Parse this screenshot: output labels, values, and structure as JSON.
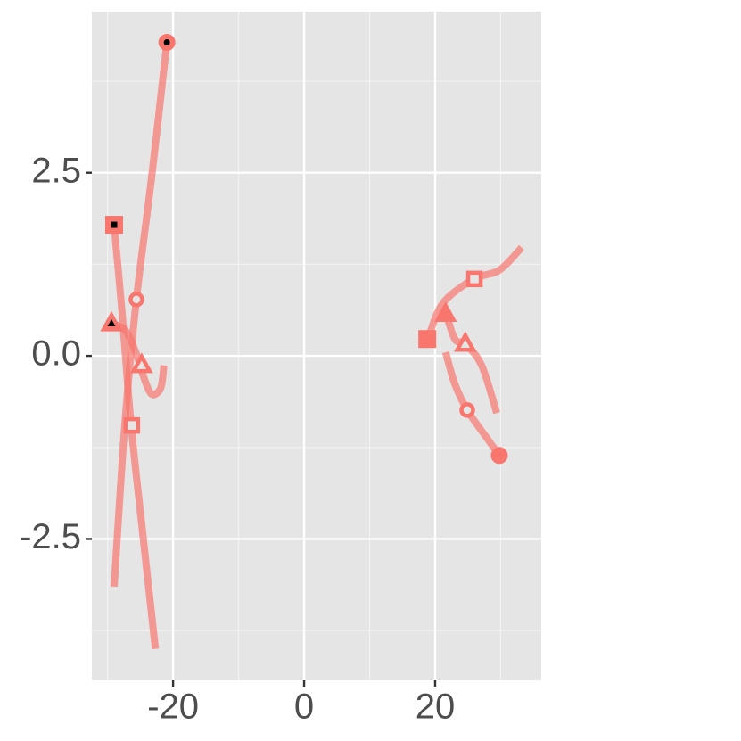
{
  "chart_data": {
    "type": "path",
    "xlim": [
      -32.4,
      36.2
    ],
    "ylim": [
      -4.43,
      4.7
    ],
    "xticks": [
      -20,
      0,
      20
    ],
    "yticks": [
      2.5,
      {
        "value": 0,
        "label": "0.0"
      },
      -2.5
    ],
    "x_minor_ticks": [
      -30,
      -10,
      10,
      30
    ],
    "y_minor_ticks": [
      3.75,
      1.25,
      -1.25,
      -3.75
    ],
    "grid": true,
    "color": "#f8766d",
    "series": [
      {
        "x": [
          -20.95,
          -23.3,
          -25.6,
          -27.3,
          -29.0
        ],
        "values": [
          4.28,
          2.42,
          0.77,
          -0.86,
          -3.15
        ]
      },
      {
        "x": [
          -29.0,
          -27.8,
          -26.4,
          -24.6,
          -22.7
        ],
        "values": [
          1.79,
          0.6,
          -0.95,
          -2.45,
          -4.0
        ]
      },
      {
        "x": [
          -29.5,
          -27.3,
          -25.7,
          -24.6,
          -23.3,
          -21.9,
          -21.4
        ],
        "values": [
          0.44,
          0.35,
          0.05,
          -0.26,
          -0.52,
          -0.44,
          -0.13
        ]
      },
      {
        "x": [
          18.9,
          21.2,
          25.9,
          29.8,
          33.2
        ],
        "values": [
          0.23,
          0.72,
          1.05,
          1.17,
          1.48
        ]
      },
      {
        "x": [
          21.6,
          23.0,
          24.6,
          27.1,
          29.4
        ],
        "values": [
          0.6,
          0.23,
          0.16,
          -0.13,
          -0.78
        ]
      },
      {
        "x": [
          21.6,
          23.0,
          24.9,
          27.8,
          29.8
        ],
        "values": [
          0.05,
          -0.38,
          -0.74,
          -1.11,
          -1.36
        ]
      }
    ],
    "points": [
      {
        "x": -20.95,
        "y": 4.28,
        "shape": "circle",
        "style": "dotted"
      },
      {
        "x": -29.0,
        "y": 1.79,
        "shape": "square",
        "style": "dotted"
      },
      {
        "x": -25.6,
        "y": 0.77,
        "shape": "circle",
        "style": "open"
      },
      {
        "x": -29.4,
        "y": 0.44,
        "shape": "triangle",
        "style": "dotted"
      },
      {
        "x": -24.8,
        "y": -0.13,
        "shape": "triangle",
        "style": "open"
      },
      {
        "x": -26.3,
        "y": -0.95,
        "shape": "square",
        "style": "open"
      },
      {
        "x": 18.8,
        "y": 0.23,
        "shape": "square",
        "style": "filled"
      },
      {
        "x": 26.0,
        "y": 1.05,
        "shape": "square",
        "style": "open"
      },
      {
        "x": 21.6,
        "y": 0.57,
        "shape": "triangle",
        "style": "filled"
      },
      {
        "x": 24.6,
        "y": 0.16,
        "shape": "triangle",
        "style": "open"
      },
      {
        "x": 24.9,
        "y": -0.74,
        "shape": "circle",
        "style": "open"
      },
      {
        "x": 29.8,
        "y": -1.36,
        "shape": "circle",
        "style": "filled"
      }
    ]
  }
}
